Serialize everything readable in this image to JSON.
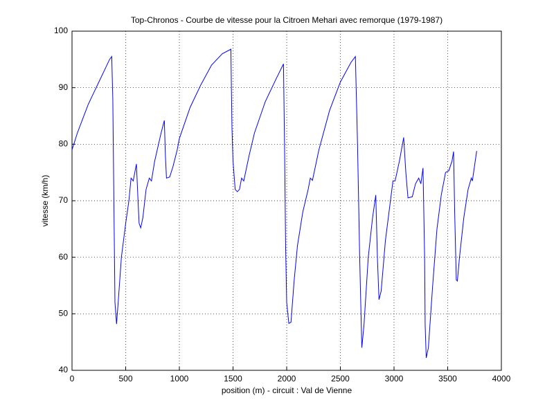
{
  "chart_data": {
    "type": "line",
    "title": "Top-Chronos - Courbe de vitesse pour la Citroen Mehari avec remorque (1979-1987)",
    "x_label": "position (m) - circuit : Val de Vienne",
    "y_label": "vitesse (km/h)",
    "xlim": [
      0,
      4000
    ],
    "xticks": [
      0,
      500,
      1000,
      1500,
      2000,
      2500,
      3000,
      3500,
      4000
    ],
    "ylim": [
      40,
      100
    ],
    "yticks": [
      40,
      50,
      60,
      70,
      80,
      90,
      100
    ],
    "grid": true,
    "series": [
      {
        "color": "#0000ff",
        "x": [
          0,
          50,
          100,
          150,
          200,
          250,
          300,
          350,
          370,
          380,
          390,
          400,
          415,
          430,
          460,
          500,
          530,
          550,
          570,
          600,
          615,
          625,
          640,
          660,
          690,
          720,
          740,
          770,
          800,
          830,
          860,
          870,
          880,
          910,
          940,
          980,
          1000,
          1100,
          1200,
          1300,
          1400,
          1480,
          1490,
          1500,
          1520,
          1540,
          1560,
          1580,
          1600,
          1650,
          1700,
          1800,
          1900,
          1970,
          1980,
          1990,
          2000,
          2020,
          2040,
          2070,
          2100,
          2150,
          2200,
          2220,
          2240,
          2300,
          2400,
          2500,
          2600,
          2640,
          2660,
          2680,
          2700,
          2720,
          2760,
          2800,
          2830,
          2845,
          2860,
          2880,
          2920,
          2960,
          2990,
          3010,
          3050,
          3090,
          3110,
          3130,
          3170,
          3200,
          3230,
          3250,
          3270,
          3285,
          3290,
          3300,
          3320,
          3360,
          3400,
          3440,
          3480,
          3510,
          3540,
          3555,
          3565,
          3580,
          3590,
          3610,
          3650,
          3690,
          3720,
          3730,
          3770
        ],
        "values": [
          79,
          82,
          84.5,
          87,
          89,
          91,
          93,
          95,
          95.5,
          88,
          70,
          52,
          48.2,
          52,
          60,
          66,
          70,
          74,
          73.5,
          76.5,
          70,
          66,
          65.2,
          67,
          72,
          74,
          73.5,
          77,
          79.5,
          82,
          84.2,
          78,
          74,
          74.2,
          76,
          79,
          81,
          86.5,
          90.5,
          94,
          96,
          96.8,
          83,
          77,
          72,
          71.6,
          72,
          74,
          73.5,
          78,
          82,
          87.5,
          91.5,
          94.2,
          80,
          62,
          52,
          48.3,
          48.5,
          56,
          62,
          68,
          72,
          74,
          73.6,
          79,
          86,
          91,
          94.5,
          95.5,
          80,
          60,
          44,
          48,
          60,
          67,
          71,
          60,
          52.5,
          54,
          63,
          69,
          73.5,
          73.5,
          77,
          81.2,
          75,
          70.5,
          70.7,
          73,
          74,
          73,
          75.8,
          60,
          48,
          42.2,
          44,
          55,
          65,
          71,
          75,
          75.3,
          77,
          78.7,
          68,
          56,
          55.8,
          60,
          67,
          72,
          74,
          73.5,
          78.8
        ]
      }
    ]
  }
}
